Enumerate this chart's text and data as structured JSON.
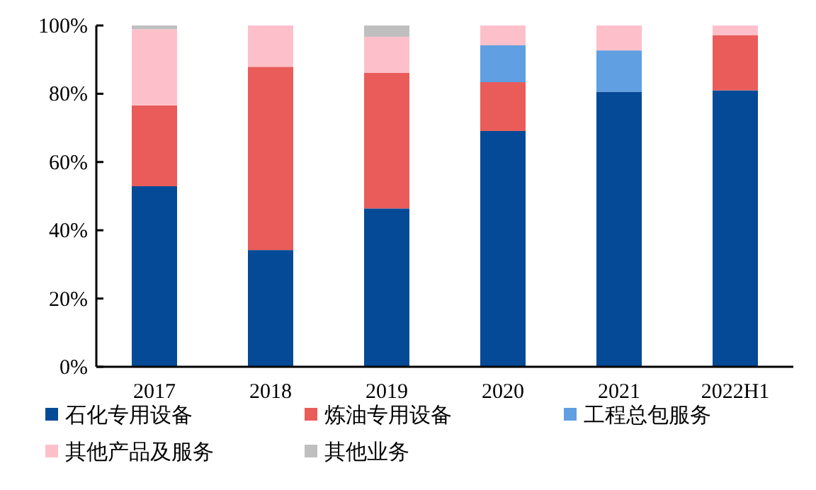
{
  "chart_data": {
    "type": "bar",
    "stacked": true,
    "categories": [
      "2017",
      "2018",
      "2019",
      "2020",
      "2021",
      "2022H1"
    ],
    "series": [
      {
        "name": "石化专用设备",
        "color": "#044a97",
        "values": [
          52.9,
          34.2,
          46.4,
          69.1,
          80.6,
          81.0
        ]
      },
      {
        "name": "炼油专用设备",
        "color": "#e95c5a",
        "values": [
          23.7,
          53.7,
          39.7,
          14.3,
          null,
          16.2
        ]
      },
      {
        "name": "工程总包服务",
        "color": "#5f9fe2",
        "values": [
          null,
          null,
          null,
          10.8,
          12.1,
          null
        ]
      },
      {
        "name": "其他产品及服务",
        "color": "#fdc0cb",
        "values": [
          22.3,
          12.1,
          10.6,
          5.8,
          7.3,
          2.8
        ]
      },
      {
        "name": "其他业务",
        "color": "#bfbfbf",
        "values": [
          1.1,
          null,
          3.3,
          null,
          null,
          null
        ]
      }
    ],
    "ylim": [
      0,
      100
    ],
    "yticks": [
      {
        "value": 0,
        "label": "0%"
      },
      {
        "value": 20,
        "label": "20%"
      },
      {
        "value": 40,
        "label": "40%"
      },
      {
        "value": 60,
        "label": "60%"
      },
      {
        "value": 80,
        "label": "80%"
      },
      {
        "value": 100,
        "label": "100%"
      }
    ],
    "grid": false,
    "legend": "bottom"
  }
}
